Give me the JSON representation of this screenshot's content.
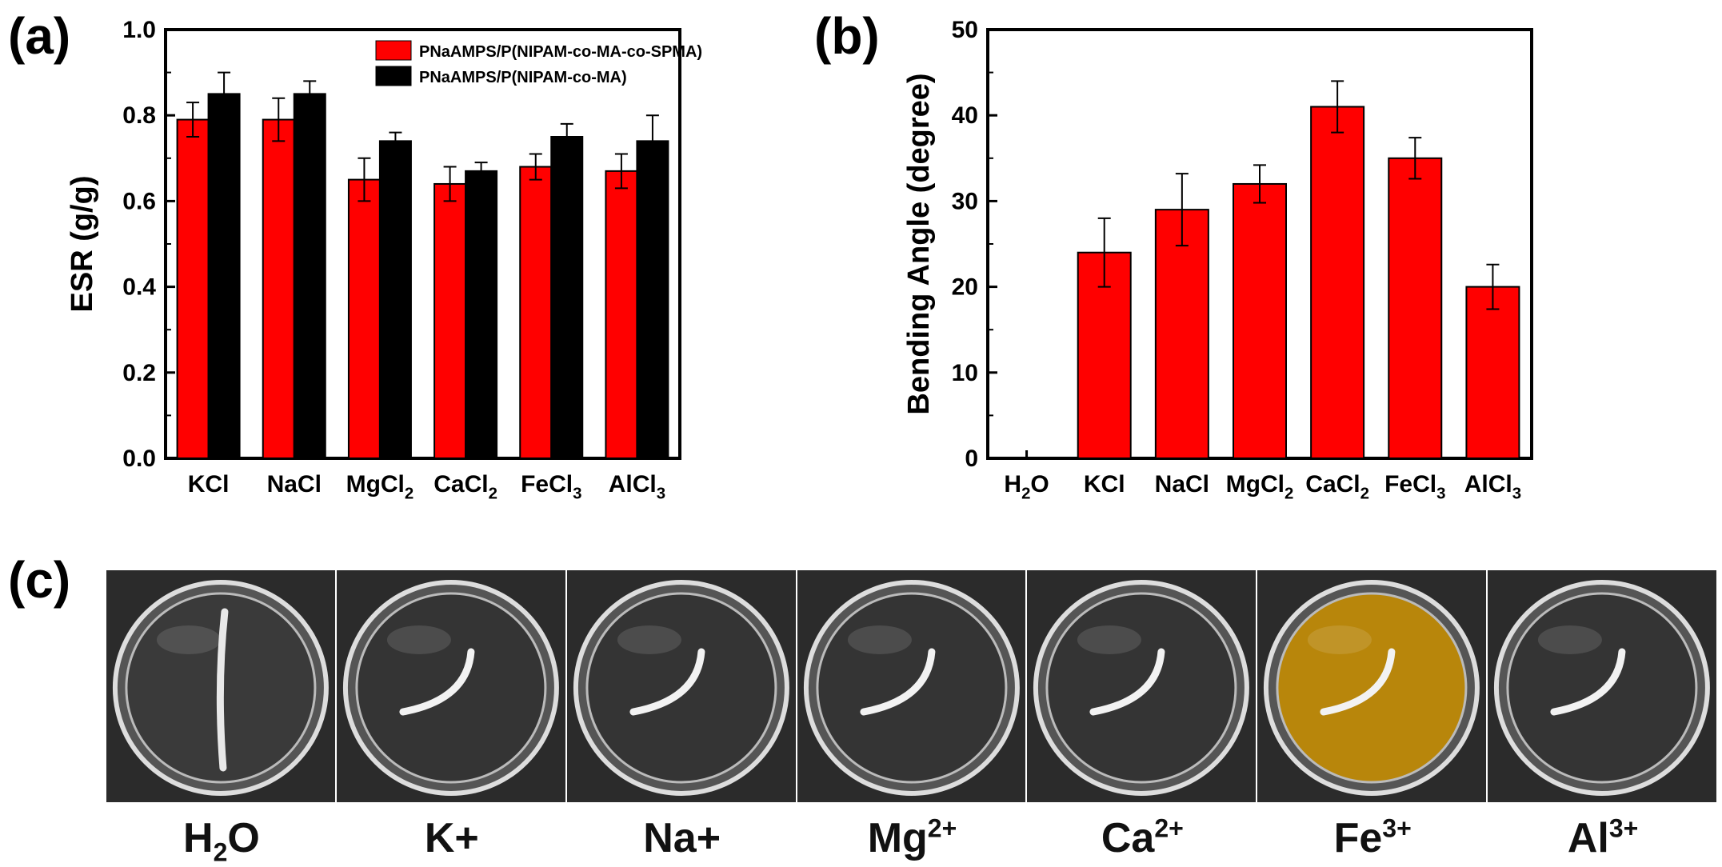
{
  "figure": {
    "panel_labels": {
      "a": "(a)",
      "b": "(b)",
      "c": "(c)"
    }
  },
  "chart_data": [
    {
      "id": "a",
      "type": "bar",
      "ylabel": "ESR (g/g)",
      "xlabel": "",
      "ylim": [
        0,
        1.0
      ],
      "yticks": [
        0.0,
        0.2,
        0.4,
        0.6,
        0.8,
        1.0
      ],
      "ytick_labels": [
        "0.0",
        "0.2",
        "0.4",
        "0.6",
        "0.8",
        "1.0"
      ],
      "categories": [
        "KCl",
        "NaCl",
        "MgCl2",
        "CaCl2",
        "FeCl3",
        "AlCl3"
      ],
      "category_labels": [
        {
          "base": "KCl",
          "sub": ""
        },
        {
          "base": "NaCl",
          "sub": ""
        },
        {
          "base": "MgCl",
          "sub": "2"
        },
        {
          "base": "CaCl",
          "sub": "2"
        },
        {
          "base": "FeCl",
          "sub": "3"
        },
        {
          "base": "AlCl",
          "sub": "3"
        }
      ],
      "legend_position": "top-right",
      "series": [
        {
          "name": "PNaAMPS/P(NIPAM-co-MA-co-SPMA)",
          "color": "#ff0000",
          "values": [
            0.79,
            0.79,
            0.65,
            0.64,
            0.68,
            0.67
          ],
          "errors": [
            0.04,
            0.05,
            0.05,
            0.04,
            0.03,
            0.04
          ]
        },
        {
          "name": "PNaAMPS/P(NIPAM-co-MA)",
          "color": "#000000",
          "values": [
            0.85,
            0.85,
            0.74,
            0.67,
            0.75,
            0.74
          ],
          "errors": [
            0.05,
            0.03,
            0.02,
            0.02,
            0.03,
            0.06
          ]
        }
      ]
    },
    {
      "id": "b",
      "type": "bar",
      "ylabel": "Bending Angle (degree)",
      "xlabel": "",
      "ylim": [
        0,
        50
      ],
      "yticks": [
        0,
        10,
        20,
        30,
        40,
        50
      ],
      "ytick_labels": [
        "0",
        "10",
        "20",
        "30",
        "40",
        "50"
      ],
      "categories": [
        "H2O",
        "KCl",
        "NaCl",
        "MgCl2",
        "CaCl2",
        "FeCl3",
        "AlCl3"
      ],
      "category_labels": [
        {
          "base": "H",
          "sub": "2",
          "tail": "O"
        },
        {
          "base": "KCl",
          "sub": "",
          "tail": ""
        },
        {
          "base": "NaCl",
          "sub": "",
          "tail": ""
        },
        {
          "base": "MgCl",
          "sub": "2",
          "tail": ""
        },
        {
          "base": "CaCl",
          "sub": "2",
          "tail": ""
        },
        {
          "base": "FeCl",
          "sub": "3",
          "tail": ""
        },
        {
          "base": "AlCl",
          "sub": "3",
          "tail": ""
        }
      ],
      "series": [
        {
          "name": "Bending Angle",
          "color": "#ff0000",
          "values": [
            0,
            24,
            29,
            32,
            41,
            35,
            20
          ],
          "errors": [
            0,
            4,
            4.2,
            2.2,
            3,
            2.4,
            2.6
          ]
        }
      ]
    }
  ],
  "photos": {
    "background_color": "#2b2b2b",
    "items": [
      {
        "base": "H",
        "sub": "2",
        "tail": "O",
        "sup": "",
        "liquid_color": "#3a3a3a",
        "strip": "straight"
      },
      {
        "base": "K+",
        "sub": "",
        "tail": "",
        "sup": "",
        "liquid_color": "#343434",
        "strip": "curved"
      },
      {
        "base": "Na+",
        "sub": "",
        "tail": "",
        "sup": "",
        "liquid_color": "#343434",
        "strip": "curved"
      },
      {
        "base": "Mg",
        "sub": "",
        "tail": "",
        "sup": "2+",
        "liquid_color": "#343434",
        "strip": "curved"
      },
      {
        "base": "Ca",
        "sub": "",
        "tail": "",
        "sup": "2+",
        "liquid_color": "#343434",
        "strip": "curved"
      },
      {
        "base": "Fe",
        "sub": "",
        "tail": "",
        "sup": "3+",
        "liquid_color": "#b8860b",
        "strip": "curved"
      },
      {
        "base": "Al",
        "sub": "",
        "tail": "",
        "sup": "3+",
        "liquid_color": "#343434",
        "strip": "curved"
      }
    ]
  }
}
